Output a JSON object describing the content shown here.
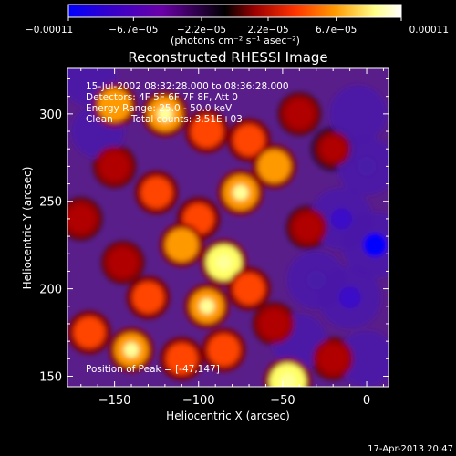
{
  "chart_data": {
    "type": "heatmap",
    "title": "Reconstructed RHESSI Image",
    "xlabel": "Heliocentric X (arcsec)",
    "ylabel": "Heliocentric Y (arcsec)",
    "xlim": [
      -178,
      13
    ],
    "ylim": [
      144,
      326
    ],
    "x_ticks": [
      -150,
      -100,
      -50,
      0
    ],
    "x_tick_labels": [
      "−150",
      "−100",
      "−50",
      "0"
    ],
    "y_ticks": [
      150,
      200,
      250,
      300
    ],
    "y_tick_labels": [
      "150",
      "200",
      "250",
      "300"
    ],
    "colorbar": {
      "range": [
        -0.00011,
        0.00011
      ],
      "tick_values": [
        -0.00011,
        -6.7e-05,
        -2.2e-05,
        2.2e-05,
        6.7e-05,
        0.00011
      ],
      "tick_labels": [
        "−0.00011",
        "−6.7e−05",
        "−2.2e−05",
        "2.2e−05",
        "6.7e−05",
        "0.00011"
      ],
      "unit_label": "(photons cm⁻² s⁻¹ asec⁻²)",
      "colors": [
        "#0000ff",
        "#3300cc",
        "#6a00a8",
        "#000000",
        "#9a0000",
        "#ff3300",
        "#ff9900",
        "#ffff88",
        "#ffffff"
      ]
    },
    "annotations": [
      "15-Jul-2002 08:32:28.000 to 08:36:28.000",
      "Detectors: 4F 5F 6F 7F 8F, Att 0",
      "Energy Range: 25.0 - 50.0 keV",
      "Clean      Total counts: 3.51E+03"
    ],
    "peak_label": "Position of Peak = [-47,147]",
    "peak_position": [
      -47,
      147
    ],
    "footer": "17-Apr-2013 20:47",
    "grid": false,
    "hotspots": [
      {
        "x": -150,
        "y": 305,
        "v": 0.8
      },
      {
        "x": -120,
        "y": 300,
        "v": 0.9
      },
      {
        "x": -95,
        "y": 290,
        "v": 0.75
      },
      {
        "x": -70,
        "y": 285,
        "v": 0.7
      },
      {
        "x": -40,
        "y": 300,
        "v": 0.55
      },
      {
        "x": -150,
        "y": 270,
        "v": 0.6
      },
      {
        "x": -125,
        "y": 255,
        "v": 0.7
      },
      {
        "x": -100,
        "y": 240,
        "v": 0.65
      },
      {
        "x": -75,
        "y": 255,
        "v": 0.9
      },
      {
        "x": -55,
        "y": 270,
        "v": 0.8
      },
      {
        "x": -85,
        "y": 215,
        "v": 0.95
      },
      {
        "x": -110,
        "y": 225,
        "v": 0.8
      },
      {
        "x": -145,
        "y": 215,
        "v": 0.6
      },
      {
        "x": -130,
        "y": 195,
        "v": 0.7
      },
      {
        "x": -95,
        "y": 190,
        "v": 0.85
      },
      {
        "x": -70,
        "y": 200,
        "v": 0.7
      },
      {
        "x": -55,
        "y": 180,
        "v": 0.6
      },
      {
        "x": -165,
        "y": 175,
        "v": 0.7
      },
      {
        "x": -140,
        "y": 165,
        "v": 0.85
      },
      {
        "x": -110,
        "y": 160,
        "v": 0.7
      },
      {
        "x": -85,
        "y": 165,
        "v": 0.75
      },
      {
        "x": -47,
        "y": 147,
        "v": 1.0
      },
      {
        "x": -20,
        "y": 160,
        "v": 0.6
      },
      {
        "x": -170,
        "y": 240,
        "v": 0.55
      },
      {
        "x": -35,
        "y": 235,
        "v": 0.5
      },
      {
        "x": -20,
        "y": 280,
        "v": 0.3
      }
    ],
    "coldspots": [
      {
        "x": -15,
        "y": 240,
        "v": -0.8
      },
      {
        "x": 5,
        "y": 225,
        "v": -1.0
      },
      {
        "x": -10,
        "y": 195,
        "v": -0.85
      },
      {
        "x": 0,
        "y": 270,
        "v": -0.6
      },
      {
        "x": -30,
        "y": 205,
        "v": -0.6
      },
      {
        "x": -5,
        "y": 300,
        "v": -0.55
      },
      {
        "x": -165,
        "y": 320,
        "v": -0.4
      },
      {
        "x": -160,
        "y": 290,
        "v": -0.3
      },
      {
        "x": -40,
        "y": 170,
        "v": -0.4
      },
      {
        "x": 0,
        "y": 160,
        "v": -0.5
      }
    ]
  }
}
